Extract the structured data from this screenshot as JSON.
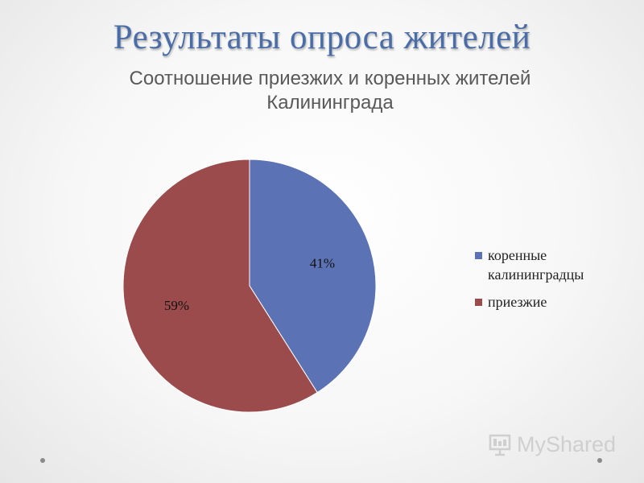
{
  "slide": {
    "title": "Результаты опроса жителей"
  },
  "chart_data": {
    "type": "pie",
    "title": "Соотношение приезжих и коренных жителей Калининграда",
    "categories": [
      "коренные калининградцы",
      "приезжие"
    ],
    "values": [
      41,
      59
    ],
    "labels": [
      "41%",
      "59%"
    ],
    "colors": [
      "#5b72b5",
      "#9b4b4b"
    ],
    "legend_position": "right"
  },
  "watermark": {
    "text": "MyShared"
  }
}
